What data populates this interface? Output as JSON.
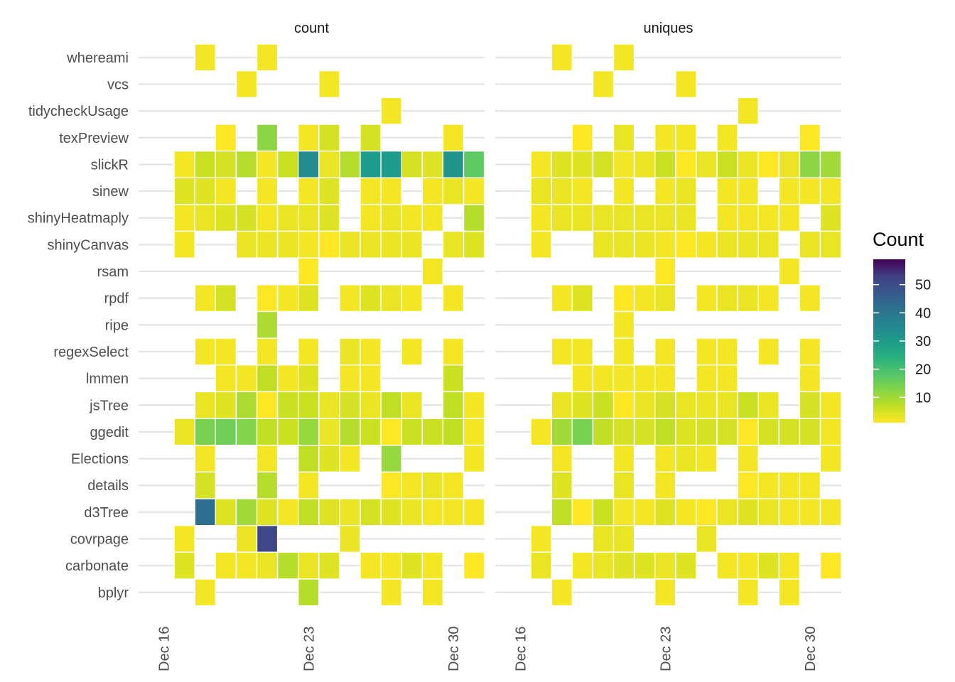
{
  "chart_data": {
    "type": "heatmap",
    "facets": [
      "count",
      "uniques"
    ],
    "rows": [
      "whereami",
      "vcs",
      "tidycheckUsage",
      "texPreview",
      "slickR",
      "sinew",
      "shinyHeatmaply",
      "shinyCanvas",
      "rsam",
      "rpdf",
      "ripe",
      "regexSelect",
      "lmmen",
      "jsTree",
      "ggedit",
      "Elections",
      "details",
      "d3Tree",
      "covrpage",
      "carbonate",
      "bplyr"
    ],
    "x_dates": [
      "Dec 16",
      "Dec 17",
      "Dec 18",
      "Dec 19",
      "Dec 20",
      "Dec 21",
      "Dec 22",
      "Dec 23",
      "Dec 24",
      "Dec 25",
      "Dec 26",
      "Dec 27",
      "Dec 28",
      "Dec 29",
      "Dec 30",
      "Dec 31"
    ],
    "x_ticks": [
      "Dec 16",
      "Dec 23",
      "Dec 30"
    ],
    "legend": {
      "title": "Count",
      "ticks": [
        10,
        20,
        30,
        40,
        50
      ],
      "range": [
        1,
        59
      ],
      "palette": "viridis (reversed)",
      "placement": "right"
    },
    "xlabel": "",
    "ylabel": "",
    "values": {
      "count": [
        [
          null,
          null,
          2,
          null,
          null,
          2,
          null,
          null,
          null,
          null,
          null,
          null,
          null,
          null,
          null,
          null
        ],
        [
          null,
          null,
          null,
          null,
          2,
          null,
          null,
          null,
          2,
          null,
          null,
          null,
          null,
          null,
          null,
          null
        ],
        [
          null,
          null,
          null,
          null,
          null,
          null,
          null,
          null,
          null,
          null,
          null,
          2,
          null,
          null,
          null,
          null
        ],
        [
          null,
          null,
          null,
          1,
          null,
          12,
          null,
          2,
          5,
          null,
          5,
          null,
          null,
          null,
          2,
          null
        ],
        [
          null,
          2,
          6,
          5,
          8,
          2,
          6,
          34,
          3,
          8,
          30,
          30,
          5,
          4,
          32,
          17
        ],
        [
          null,
          4,
          4,
          2,
          null,
          2,
          null,
          2,
          4,
          null,
          2,
          2,
          null,
          2,
          3,
          2
        ],
        [
          null,
          2,
          3,
          4,
          5,
          2,
          3,
          3,
          4,
          null,
          2,
          3,
          2,
          2,
          null,
          8
        ],
        [
          null,
          2,
          null,
          null,
          3,
          3,
          3,
          2,
          1,
          3,
          3,
          3,
          3,
          null,
          3,
          4
        ],
        [
          null,
          null,
          null,
          null,
          null,
          null,
          null,
          1,
          null,
          null,
          null,
          null,
          null,
          2,
          null,
          null
        ],
        [
          null,
          null,
          2,
          5,
          null,
          1,
          2,
          4,
          null,
          2,
          4,
          3,
          2,
          null,
          2,
          null
        ],
        [
          null,
          null,
          null,
          null,
          null,
          9,
          null,
          null,
          null,
          null,
          null,
          null,
          null,
          null,
          null,
          null
        ],
        [
          null,
          null,
          2,
          2,
          null,
          2,
          null,
          2,
          null,
          3,
          2,
          null,
          2,
          null,
          2,
          null
        ],
        [
          null,
          null,
          null,
          2,
          2,
          7,
          2,
          4,
          null,
          2,
          2,
          null,
          null,
          null,
          6,
          null
        ],
        [
          null,
          null,
          3,
          4,
          9,
          1,
          6,
          6,
          3,
          5,
          3,
          7,
          3,
          null,
          7,
          2
        ],
        [
          null,
          3,
          14,
          15,
          13,
          7,
          6,
          11,
          3,
          8,
          6,
          1,
          6,
          6,
          7,
          2
        ],
        [
          null,
          null,
          2,
          null,
          null,
          2,
          null,
          7,
          4,
          2,
          null,
          11,
          null,
          null,
          null,
          2
        ],
        [
          null,
          null,
          5,
          null,
          null,
          8,
          null,
          2,
          null,
          null,
          null,
          1,
          2,
          3,
          2,
          null
        ],
        [
          null,
          null,
          42,
          4,
          10,
          4,
          2,
          7,
          4,
          3,
          5,
          4,
          3,
          2,
          2,
          2
        ],
        [
          null,
          2,
          null,
          null,
          3,
          51,
          null,
          null,
          null,
          3,
          null,
          null,
          null,
          null,
          null,
          null
        ],
        [
          null,
          4,
          null,
          2,
          2,
          3,
          8,
          3,
          4,
          null,
          2,
          2,
          4,
          2,
          null,
          1
        ],
        [
          null,
          null,
          2,
          null,
          null,
          null,
          null,
          8,
          null,
          null,
          null,
          2,
          null,
          2,
          null,
          null
        ]
      ],
      "uniques": [
        [
          null,
          null,
          2,
          null,
          null,
          2,
          null,
          null,
          null,
          null,
          null,
          null,
          null,
          null,
          null,
          null
        ],
        [
          null,
          null,
          null,
          null,
          2,
          null,
          null,
          null,
          2,
          null,
          null,
          null,
          null,
          null,
          null,
          null
        ],
        [
          null,
          null,
          null,
          null,
          null,
          null,
          null,
          null,
          null,
          null,
          null,
          2,
          null,
          null,
          null,
          null
        ],
        [
          null,
          null,
          null,
          1,
          null,
          3,
          null,
          2,
          2,
          null,
          2,
          null,
          null,
          null,
          1,
          null
        ],
        [
          null,
          2,
          4,
          4,
          5,
          2,
          3,
          6,
          1,
          3,
          6,
          3,
          1,
          3,
          12,
          10
        ],
        [
          null,
          3,
          3,
          2,
          null,
          2,
          null,
          2,
          3,
          null,
          2,
          2,
          null,
          2,
          2,
          2
        ],
        [
          null,
          2,
          3,
          3,
          3,
          3,
          3,
          3,
          3,
          null,
          2,
          2,
          2,
          2,
          null,
          4
        ],
        [
          null,
          2,
          null,
          null,
          3,
          3,
          3,
          2,
          1,
          2,
          3,
          3,
          3,
          null,
          3,
          3
        ],
        [
          null,
          null,
          null,
          null,
          null,
          null,
          null,
          1,
          null,
          null,
          null,
          null,
          null,
          2,
          null,
          null
        ],
        [
          null,
          null,
          2,
          4,
          null,
          1,
          2,
          3,
          null,
          2,
          3,
          3,
          2,
          null,
          2,
          null
        ],
        [
          null,
          null,
          null,
          null,
          null,
          2,
          null,
          null,
          null,
          null,
          null,
          null,
          null,
          null,
          null,
          null
        ],
        [
          null,
          null,
          2,
          2,
          null,
          2,
          null,
          2,
          null,
          2,
          2,
          null,
          2,
          null,
          2,
          null
        ],
        [
          null,
          null,
          null,
          2,
          2,
          2,
          2,
          2,
          null,
          2,
          2,
          null,
          null,
          null,
          2,
          null
        ],
        [
          null,
          null,
          3,
          4,
          6,
          1,
          3,
          5,
          3,
          3,
          3,
          6,
          3,
          null,
          5,
          2
        ],
        [
          null,
          2,
          10,
          14,
          7,
          5,
          5,
          7,
          4,
          5,
          5,
          1,
          5,
          5,
          5,
          2
        ],
        [
          null,
          null,
          2,
          null,
          null,
          2,
          null,
          2,
          3,
          2,
          null,
          2,
          null,
          null,
          null,
          2
        ],
        [
          null,
          null,
          4,
          null,
          null,
          3,
          null,
          2,
          null,
          null,
          null,
          1,
          2,
          2,
          2,
          null
        ],
        [
          null,
          null,
          7,
          1,
          6,
          2,
          2,
          4,
          2,
          1,
          3,
          4,
          3,
          2,
          2,
          2
        ],
        [
          null,
          2,
          null,
          null,
          3,
          3,
          null,
          null,
          null,
          3,
          null,
          null,
          null,
          null,
          null,
          null
        ],
        [
          null,
          3,
          null,
          2,
          3,
          4,
          4,
          3,
          4,
          null,
          2,
          2,
          4,
          2,
          null,
          1
        ],
        [
          null,
          null,
          2,
          null,
          null,
          null,
          null,
          2,
          null,
          null,
          null,
          2,
          null,
          2,
          null,
          null
        ]
      ]
    }
  }
}
